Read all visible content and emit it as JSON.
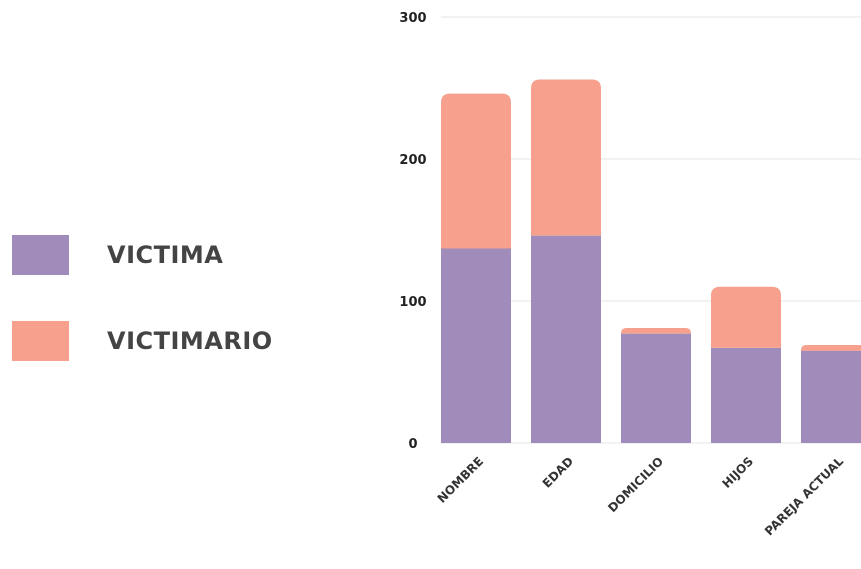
{
  "legend": [
    {
      "label": "VICTIMA",
      "color": "#a08bba"
    },
    {
      "label": "VICTIMARIO",
      "color": "#f6a08d"
    }
  ],
  "chart_data": {
    "type": "bar",
    "stacked": true,
    "categories": [
      "NOMBRE",
      "EDAD",
      "DOMICILIO",
      "HIJOS",
      "PAREJA ACTUAL"
    ],
    "series": [
      {
        "name": "VICTIMA",
        "color": "#a08bba",
        "values": [
          137,
          146,
          77,
          67,
          65
        ]
      },
      {
        "name": "VICTIMARIO",
        "color": "#f6a08d",
        "values": [
          109,
          110,
          4,
          43,
          4
        ]
      }
    ],
    "ylim": [
      0,
      300
    ],
    "yticks": [
      "0",
      "100",
      "200",
      "300"
    ],
    "grid": true,
    "legend_position": "left"
  }
}
